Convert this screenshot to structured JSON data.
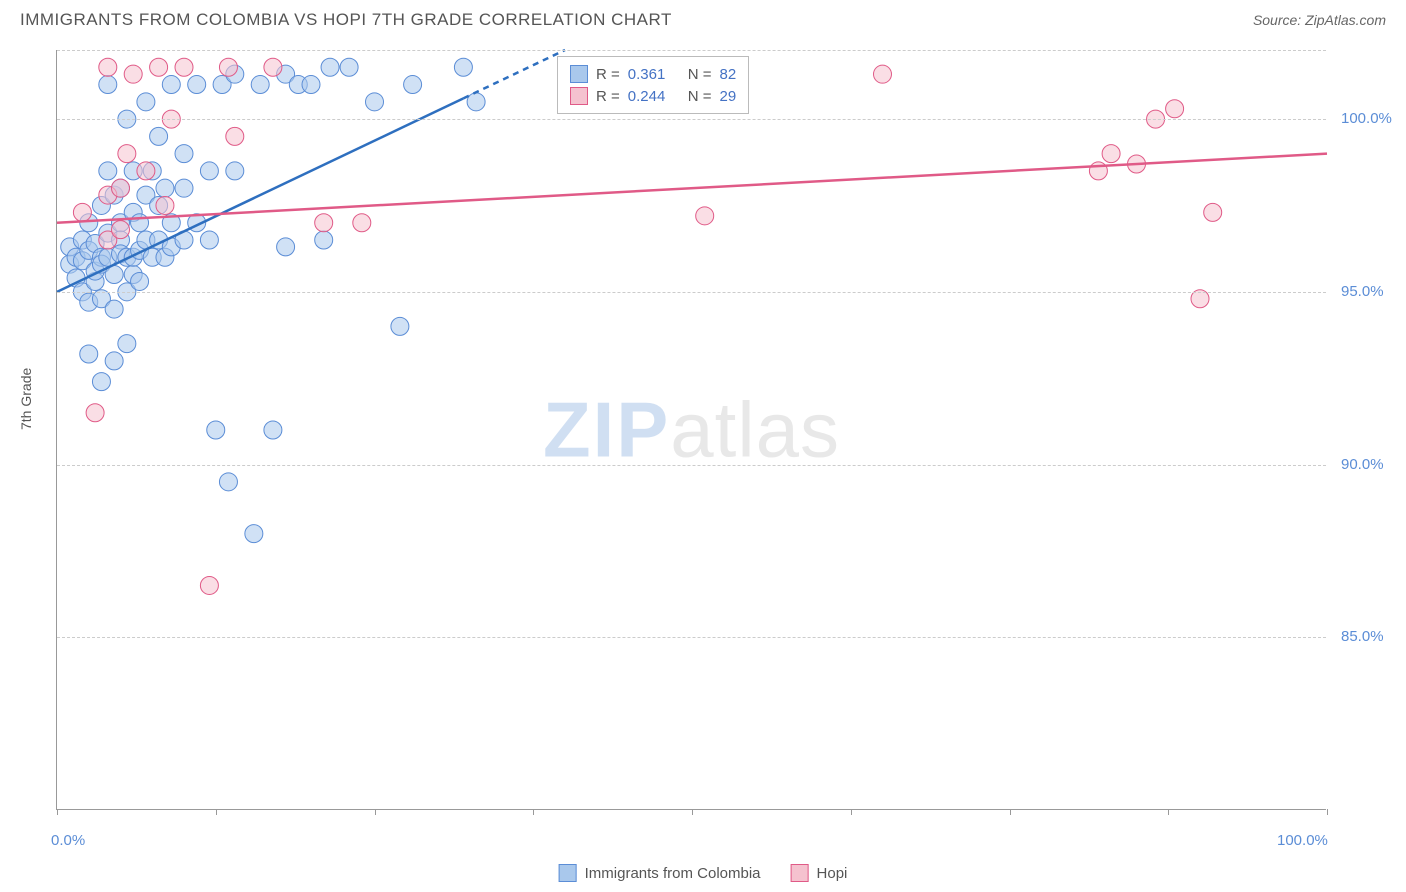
{
  "header": {
    "title": "IMMIGRANTS FROM COLOMBIA VS HOPI 7TH GRADE CORRELATION CHART",
    "source": "Source: ZipAtlas.com"
  },
  "chart": {
    "type": "scatter",
    "y_axis_label": "7th Grade",
    "xlim": [
      0,
      100
    ],
    "ylim": [
      80,
      102
    ],
    "x_ticks_minor": [
      0,
      12.5,
      25,
      37.5,
      50,
      62.5,
      75,
      87.5,
      100
    ],
    "x_tick_labels": [
      {
        "pos": 0,
        "label": "0.0%"
      },
      {
        "pos": 100,
        "label": "100.0%"
      }
    ],
    "y_gridlines": [
      85,
      90,
      95,
      100,
      102
    ],
    "y_tick_labels": [
      {
        "pos": 85,
        "label": "85.0%"
      },
      {
        "pos": 90,
        "label": "90.0%"
      },
      {
        "pos": 95,
        "label": "95.0%"
      },
      {
        "pos": 100,
        "label": "100.0%"
      }
    ],
    "background_color": "#ffffff",
    "grid_color": "#cccccc",
    "marker_radius": 9,
    "marker_opacity": 0.55,
    "series": [
      {
        "name": "Immigrants from Colombia",
        "color_fill": "#a9c8ec",
        "color_stroke": "#5b8dd6",
        "trend_color": "#2e6fbf",
        "trend": {
          "x1": 0,
          "y1": 95.0,
          "x2": 40,
          "y2": 102.0,
          "dash_after_x": 32
        },
        "R": "0.361",
        "N": "82",
        "points": [
          [
            1,
            95.8
          ],
          [
            1,
            96.3
          ],
          [
            1.5,
            96.0
          ],
          [
            1.5,
            95.4
          ],
          [
            2,
            95.9
          ],
          [
            2,
            96.5
          ],
          [
            2,
            95.0
          ],
          [
            2.5,
            97.0
          ],
          [
            2.5,
            96.2
          ],
          [
            2.5,
            94.7
          ],
          [
            2.5,
            93.2
          ],
          [
            3,
            96.4
          ],
          [
            3,
            95.3
          ],
          [
            3,
            95.6
          ],
          [
            3.5,
            97.5
          ],
          [
            3.5,
            96.0
          ],
          [
            3.5,
            95.8
          ],
          [
            3.5,
            94.8
          ],
          [
            3.5,
            92.4
          ],
          [
            4,
            96.7
          ],
          [
            4,
            96.0
          ],
          [
            4,
            98.5
          ],
          [
            4,
            101.0
          ],
          [
            4.5,
            97.8
          ],
          [
            4.5,
            95.5
          ],
          [
            4.5,
            94.5
          ],
          [
            4.5,
            93.0
          ],
          [
            5,
            97.0
          ],
          [
            5,
            96.5
          ],
          [
            5,
            96.1
          ],
          [
            5,
            98.0
          ],
          [
            5.5,
            95.0
          ],
          [
            5.5,
            96.0
          ],
          [
            5.5,
            100.0
          ],
          [
            5.5,
            93.5
          ],
          [
            6,
            97.3
          ],
          [
            6,
            95.5
          ],
          [
            6,
            96.0
          ],
          [
            6,
            98.5
          ],
          [
            6.5,
            97.0
          ],
          [
            6.5,
            96.2
          ],
          [
            6.5,
            95.3
          ],
          [
            7,
            96.5
          ],
          [
            7,
            97.8
          ],
          [
            7,
            100.5
          ],
          [
            7.5,
            96.0
          ],
          [
            7.5,
            98.5
          ],
          [
            8,
            96.5
          ],
          [
            8,
            97.5
          ],
          [
            8,
            99.5
          ],
          [
            8.5,
            96.0
          ],
          [
            8.5,
            98.0
          ],
          [
            9,
            97.0
          ],
          [
            9,
            96.3
          ],
          [
            9,
            101.0
          ],
          [
            10,
            99.0
          ],
          [
            10,
            98.0
          ],
          [
            10,
            96.5
          ],
          [
            11,
            97.0
          ],
          [
            11,
            101.0
          ],
          [
            12,
            98.5
          ],
          [
            12,
            96.5
          ],
          [
            12.5,
            91.0
          ],
          [
            13,
            101.0
          ],
          [
            13.5,
            89.5
          ],
          [
            14,
            98.5
          ],
          [
            14,
            101.3
          ],
          [
            15.5,
            88.0
          ],
          [
            16,
            101.0
          ],
          [
            17,
            91.0
          ],
          [
            18,
            96.3
          ],
          [
            18,
            101.3
          ],
          [
            19,
            101.0
          ],
          [
            20,
            101.0
          ],
          [
            21,
            96.5
          ],
          [
            21.5,
            101.5
          ],
          [
            23,
            101.5
          ],
          [
            25,
            100.5
          ],
          [
            27,
            94.0
          ],
          [
            28,
            101.0
          ],
          [
            32,
            101.5
          ],
          [
            33,
            100.5
          ]
        ]
      },
      {
        "name": "Hopi",
        "color_fill": "#f5c2cf",
        "color_stroke": "#e05a87",
        "trend_color": "#e05a87",
        "trend": {
          "x1": 0,
          "y1": 97.0,
          "x2": 100,
          "y2": 99.0,
          "dash_after_x": 100
        },
        "R": "0.244",
        "N": "29",
        "points": [
          [
            2,
            97.3
          ],
          [
            3,
            91.5
          ],
          [
            4,
            96.5
          ],
          [
            4,
            97.8
          ],
          [
            4,
            101.5
          ],
          [
            5,
            96.8
          ],
          [
            5,
            98.0
          ],
          [
            5.5,
            99.0
          ],
          [
            6,
            101.3
          ],
          [
            7,
            98.5
          ],
          [
            8,
            101.5
          ],
          [
            8.5,
            97.5
          ],
          [
            9,
            100.0
          ],
          [
            10,
            101.5
          ],
          [
            12,
            86.5
          ],
          [
            13.5,
            101.5
          ],
          [
            14,
            99.5
          ],
          [
            17,
            101.5
          ],
          [
            21,
            97.0
          ],
          [
            24,
            97.0
          ],
          [
            51,
            97.2
          ],
          [
            65,
            101.3
          ],
          [
            82,
            98.5
          ],
          [
            83,
            99.0
          ],
          [
            85,
            98.7
          ],
          [
            86.5,
            100.0
          ],
          [
            88,
            100.3
          ],
          [
            90,
            94.8
          ],
          [
            91,
            97.3
          ]
        ]
      }
    ],
    "legend_top": {
      "rows": [
        {
          "swatch_fill": "#a9c8ec",
          "swatch_stroke": "#5b8dd6",
          "r_label": "R =",
          "r_val": "0.361",
          "n_label": "N =",
          "n_val": "82"
        },
        {
          "swatch_fill": "#f5c2cf",
          "swatch_stroke": "#e05a87",
          "r_label": "R =",
          "r_val": "0.244",
          "n_label": "N =",
          "n_val": "29"
        }
      ]
    },
    "legend_bottom": [
      {
        "swatch_fill": "#a9c8ec",
        "swatch_stroke": "#5b8dd6",
        "label": "Immigrants from Colombia"
      },
      {
        "swatch_fill": "#f5c2cf",
        "swatch_stroke": "#e05a87",
        "label": "Hopi"
      }
    ],
    "watermark": {
      "part1": "ZIP",
      "part2": "atlas"
    }
  }
}
